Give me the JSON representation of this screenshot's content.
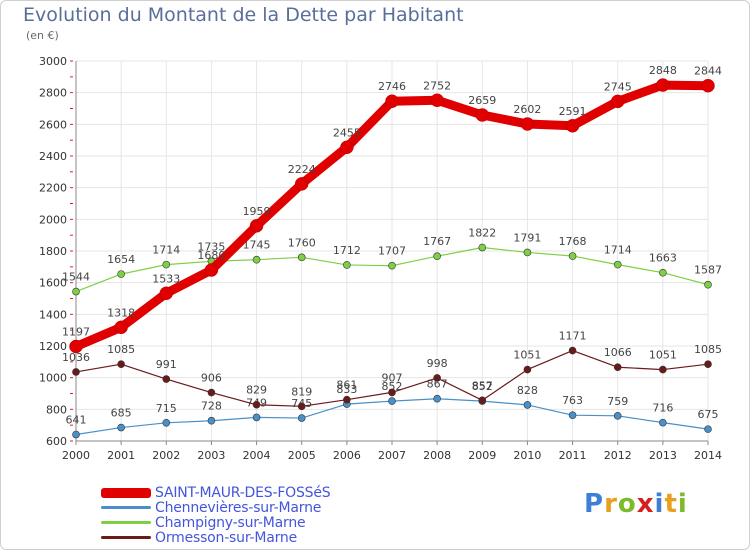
{
  "header": {
    "title": "Evolution du Montant de la Dette par Habitant",
    "subtitle": "(en €)"
  },
  "legend": [
    {
      "name": "SAINT-MAUR-DES-FOSSéS",
      "color": "#e00000"
    },
    {
      "name": "Chennevières-sur-Marne",
      "color": "#4a90c8"
    },
    {
      "name": "Champigny-sur-Marne",
      "color": "#7dcf44"
    },
    {
      "name": "Ormesson-sur-Marne",
      "color": "#6b1a1a"
    }
  ],
  "logo": {
    "letters": [
      "P",
      "r",
      "o",
      "x",
      "i",
      "t",
      "i"
    ],
    "colors": [
      "#3d7fd6",
      "#e8a020",
      "#7dbb2a",
      "#d42020",
      "#3d7fd6",
      "#e8a020",
      "#7dbb2a"
    ]
  },
  "chart_data": {
    "type": "line",
    "categories": [
      "2000",
      "2001",
      "2002",
      "2003",
      "2004",
      "2005",
      "2006",
      "2007",
      "2008",
      "2009",
      "2010",
      "2011",
      "2012",
      "2013",
      "2014"
    ],
    "ylim": [
      600,
      3000
    ],
    "yticks": [
      600,
      800,
      1000,
      1200,
      1400,
      1600,
      1800,
      2000,
      2200,
      2400,
      2600,
      2800,
      3000
    ],
    "grid": true,
    "title": "Evolution du Montant de la Dette par Habitant",
    "subtitle": "(en €)",
    "series": [
      {
        "name": "Chennevières-sur-Marne",
        "color": "#4a90c8",
        "values": [
          641,
          685,
          715,
          728,
          749,
          745,
          833,
          852,
          867,
          852,
          828,
          763,
          759,
          716,
          675
        ]
      },
      {
        "name": "Ormesson-sur-Marne",
        "color": "#6b1a1a",
        "values": [
          1036,
          1085,
          991,
          906,
          829,
          819,
          861,
          907,
          998,
          857,
          1051,
          1171,
          1066,
          1051,
          1085
        ]
      },
      {
        "name": "Champigny-sur-Marne",
        "color": "#7dcf44",
        "values": [
          1544,
          1654,
          1714,
          1735,
          1745,
          1760,
          1712,
          1707,
          1767,
          1822,
          1791,
          1768,
          1714,
          1663,
          1587
        ]
      },
      {
        "name": "SAINT-MAUR-DES-FOSSéS",
        "color": "#e00000",
        "values": [
          1197,
          1318,
          1533,
          1680,
          1959,
          2224,
          2455,
          2746,
          2752,
          2659,
          2602,
          2591,
          2745,
          2848,
          2844
        ]
      }
    ]
  }
}
